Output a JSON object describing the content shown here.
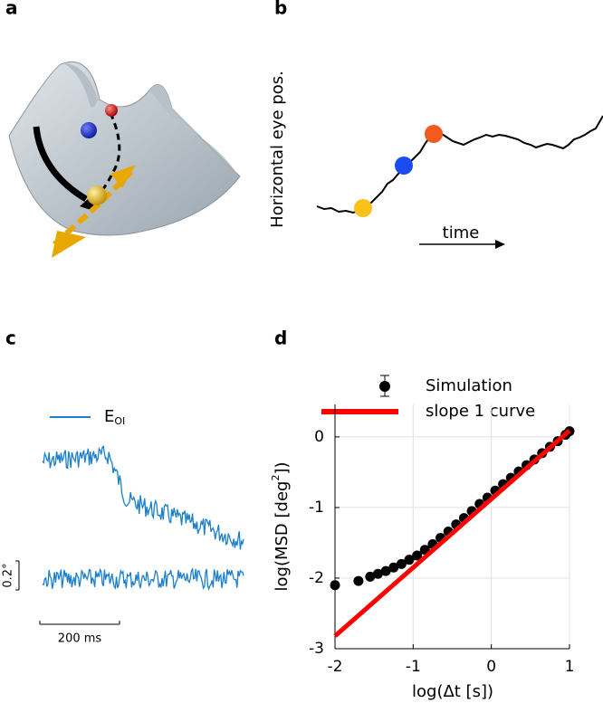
{
  "panels": [
    "a",
    "b",
    "c",
    "d"
  ],
  "panel_b": {
    "ylabel": "Horizontal eye pos.",
    "xlabel": "time"
  },
  "panel_c": {
    "legend": [
      "E",
      "OI"
    ],
    "scale_y": "0.2°",
    "scale_x": "200 ms"
  },
  "chart_data": {
    "type": "scatter",
    "xlabel": "log(Δt [s])",
    "ylabel": [
      "log(MSD [deg",
      "2",
      "])"
    ],
    "xlim": [
      -2,
      1
    ],
    "ylim": [
      -3,
      0.46
    ],
    "xticks": [
      -2,
      -1,
      0,
      1
    ],
    "yticks": [
      -3,
      -2,
      -1,
      0
    ],
    "grid": true,
    "series": [
      {
        "name": "Simulation",
        "type": "scatter",
        "color": "#000000",
        "x": [
          -2,
          -1.7,
          -1.55,
          -1.45,
          -1.35,
          -1.25,
          -1.15,
          -1.05,
          -0.95,
          -0.85,
          -0.75,
          -0.65,
          -0.55,
          -0.45,
          -0.35,
          -0.25,
          -0.15,
          -0.05,
          0.05,
          0.15,
          0.25,
          0.35,
          0.45,
          0.55,
          0.65,
          0.75,
          0.85,
          0.95,
          1
        ],
        "values": [
          -2.1,
          -2.04,
          -1.98,
          -1.94,
          -1.9,
          -1.85,
          -1.8,
          -1.74,
          -1.68,
          -1.6,
          -1.52,
          -1.43,
          -1.34,
          -1.24,
          -1.15,
          -1.05,
          -0.95,
          -0.86,
          -0.76,
          -0.67,
          -0.58,
          -0.49,
          -0.4,
          -0.32,
          -0.23,
          -0.14,
          -0.06,
          0.03,
          0.08
        ]
      },
      {
        "name": "slope 1 curve",
        "type": "line",
        "color": "#ff0000",
        "x": [
          -2,
          1
        ],
        "values": [
          -2.82,
          0.09
        ]
      }
    ]
  }
}
